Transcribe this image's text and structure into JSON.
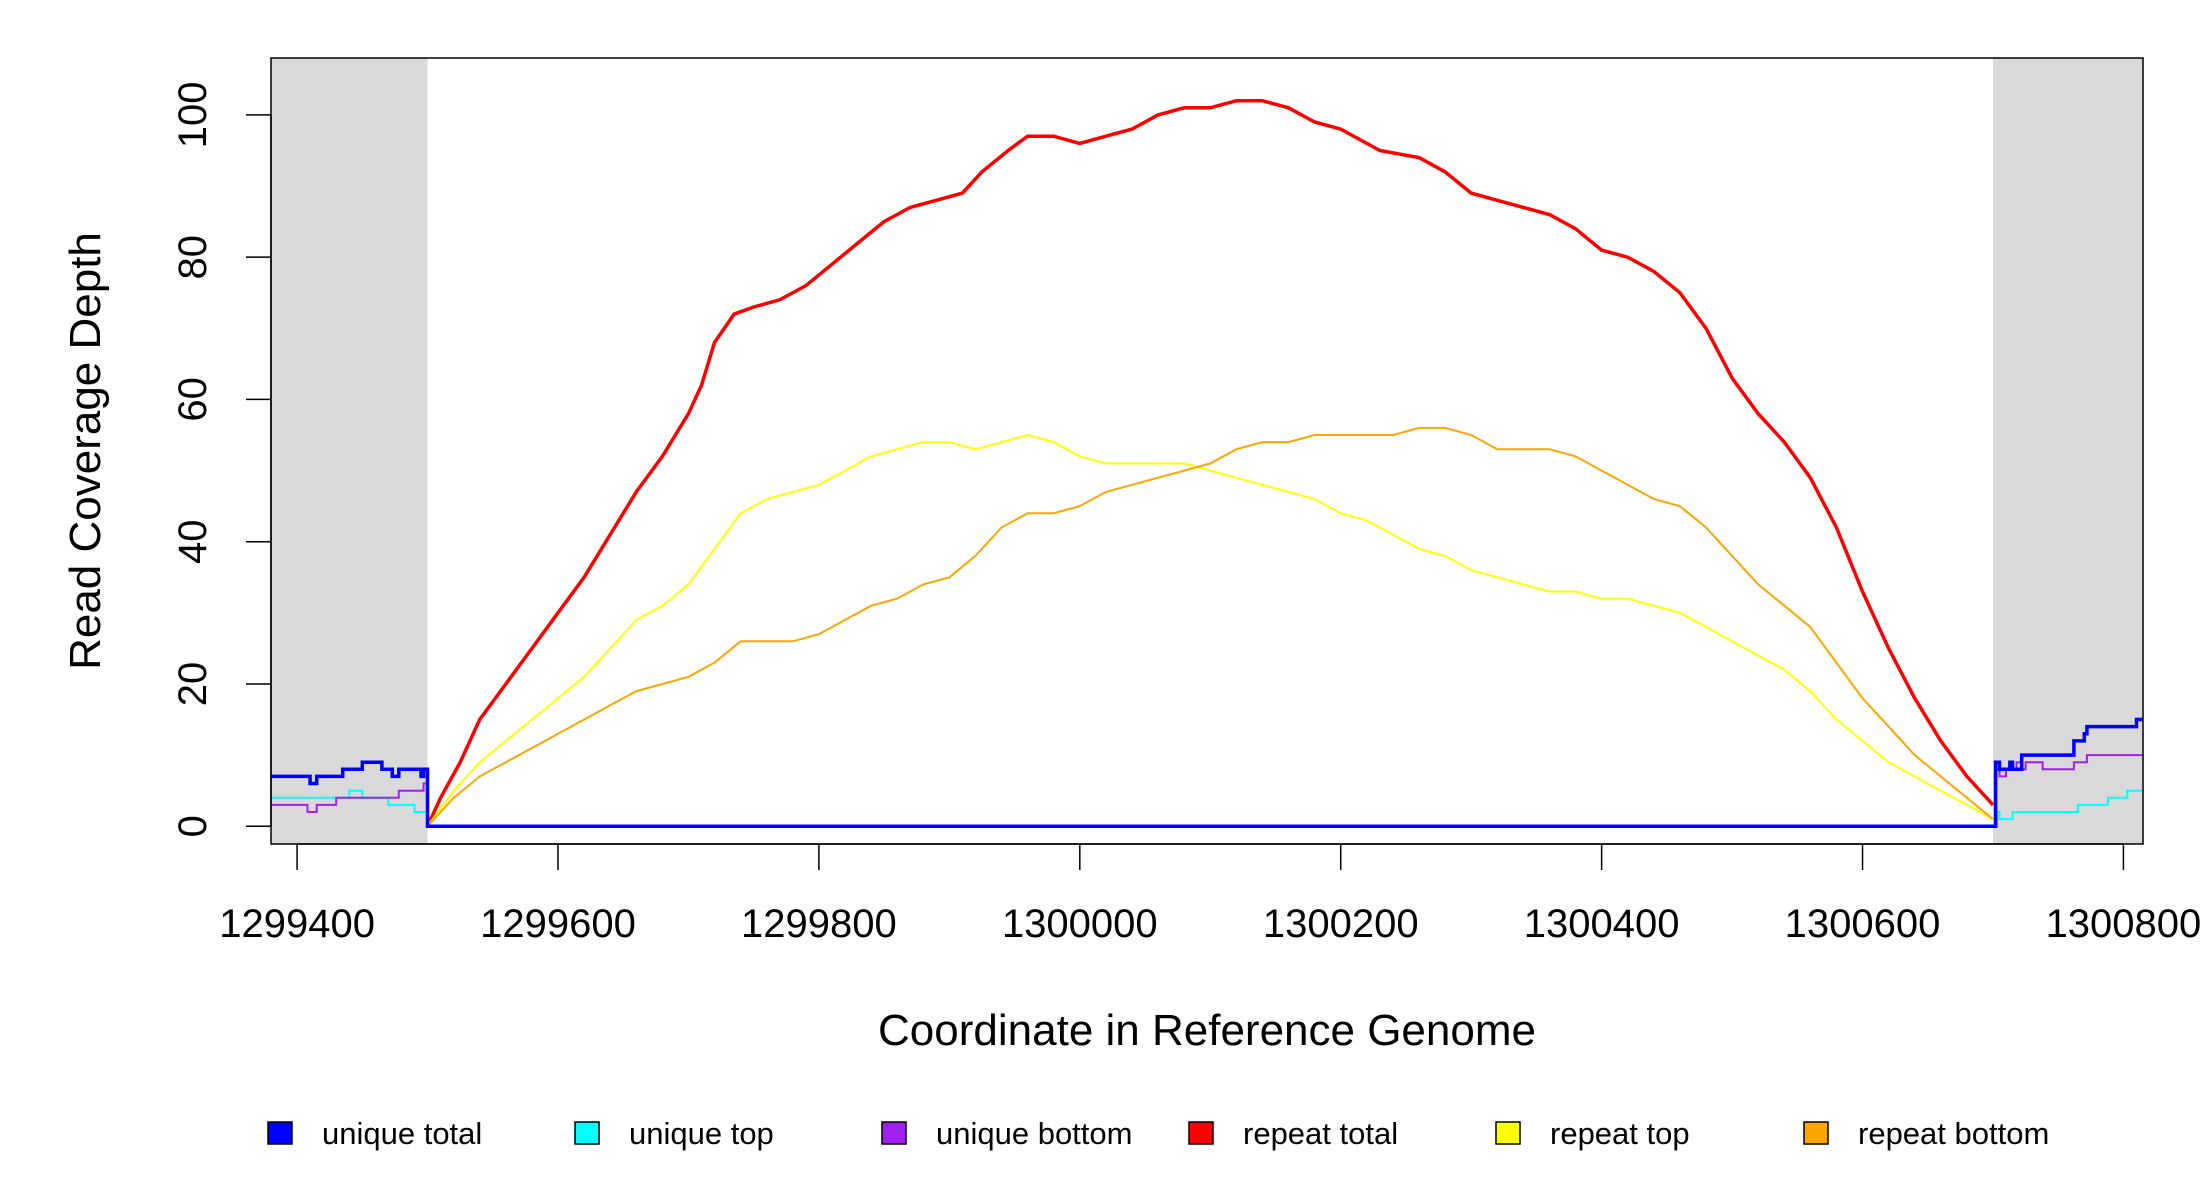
{
  "chart_data": {
    "type": "line",
    "title": "",
    "xlabel": "Coordinate in Reference Genome",
    "ylabel": "Read Coverage Depth",
    "xlim": [
      1299380,
      1300815
    ],
    "ylim": [
      -2.5,
      108
    ],
    "x_ticks": [
      1299400,
      1299600,
      1299800,
      1300000,
      1300200,
      1300400,
      1300600,
      1300800
    ],
    "x_tick_labels": [
      "1299400",
      "1299600",
      "1299800",
      "1300000",
      "1300200",
      "1300400",
      "1300600",
      "1300800"
    ],
    "y_ticks": [
      0,
      20,
      40,
      60,
      80,
      100
    ],
    "y_tick_labels": [
      "0",
      "20",
      "40",
      "60",
      "80",
      "100"
    ],
    "shaded_regions": [
      {
        "from": 1299380,
        "to": 1299500,
        "color": "#d9d9d9"
      },
      {
        "from": 1300700,
        "to": 1300815,
        "color": "#d9d9d9"
      }
    ],
    "grid": false,
    "legend_position": "bottom",
    "series": [
      {
        "name": "unique total",
        "color": "#0000ff",
        "width": 3.5,
        "step": true,
        "x": [
          1299380,
          1299410,
          1299415,
          1299425,
          1299435,
          1299440,
          1299450,
          1299465,
          1299470,
          1299473,
          1299478,
          1299490,
          1299495,
          1299497,
          1299499,
          1299500,
          1299700,
          1300700,
          1300702,
          1300705,
          1300713,
          1300715,
          1300722,
          1300738,
          1300760,
          1300762,
          1300767,
          1300770,
          1300772,
          1300810,
          1300815
        ],
        "y": [
          7,
          6,
          7,
          7,
          8,
          8,
          9,
          8,
          8,
          7,
          8,
          8,
          7,
          8,
          8,
          0,
          0,
          0,
          9,
          8,
          9,
          8,
          10,
          10,
          10,
          12,
          12,
          13,
          14,
          15,
          15
        ]
      },
      {
        "name": "unique top",
        "color": "#00ffff",
        "width": 2,
        "step": true,
        "x": [
          1299380,
          1299440,
          1299450,
          1299470,
          1299490,
          1299499,
          1299500,
          1299700,
          1300700,
          1300703,
          1300705,
          1300715,
          1300722,
          1300760,
          1300765,
          1300785,
          1300788,
          1300800,
          1300803,
          1300808,
          1300815
        ],
        "y": [
          4,
          5,
          4,
          3,
          2,
          2,
          0,
          0,
          0,
          2,
          1,
          2,
          2,
          2,
          3,
          3,
          4,
          4,
          5,
          5,
          5
        ]
      },
      {
        "name": "unique bottom",
        "color": "#a020f0",
        "width": 2,
        "step": true,
        "x": [
          1299380,
          1299408,
          1299415,
          1299420,
          1299430,
          1299435,
          1299473,
          1299478,
          1299493,
          1299497,
          1299500,
          1299700,
          1300700,
          1300702,
          1300705,
          1300710,
          1300718,
          1300722,
          1300725,
          1300730,
          1300738,
          1300760,
          1300762,
          1300765,
          1300770,
          1300772,
          1300810,
          1300815
        ],
        "y": [
          3,
          2,
          3,
          3,
          4,
          4,
          4,
          5,
          5,
          6,
          0,
          0,
          0,
          8,
          7,
          8,
          9,
          8,
          9,
          9,
          8,
          8,
          9,
          9,
          9,
          10,
          10,
          10
        ]
      },
      {
        "name": "repeat total",
        "color": "#ff0000",
        "width": 3.5,
        "step": false,
        "x": [
          1299500,
          1299510,
          1299525,
          1299540,
          1299560,
          1299580,
          1299600,
          1299620,
          1299640,
          1299660,
          1299680,
          1299700,
          1299710,
          1299720,
          1299735,
          1299750,
          1299770,
          1299790,
          1299810,
          1299830,
          1299850,
          1299870,
          1299890,
          1299910,
          1299925,
          1299945,
          1299960,
          1299980,
          1300000,
          1300020,
          1300040,
          1300060,
          1300080,
          1300100,
          1300120,
          1300140,
          1300160,
          1300180,
          1300200,
          1300230,
          1300260,
          1300280,
          1300300,
          1300320,
          1300340,
          1300360,
          1300380,
          1300400,
          1300420,
          1300440,
          1300460,
          1300480,
          1300500,
          1300520,
          1300540,
          1300560,
          1300580,
          1300600,
          1300620,
          1300640,
          1300660,
          1300680,
          1300700
        ],
        "y": [
          0,
          4,
          9,
          15,
          20,
          25,
          30,
          35,
          41,
          47,
          52,
          58,
          62,
          68,
          72,
          73,
          74,
          76,
          79,
          82,
          85,
          87,
          88,
          89,
          92,
          95,
          97,
          97,
          96,
          97,
          98,
          100,
          101,
          101,
          102,
          102,
          101,
          99,
          98,
          95,
          94,
          92,
          89,
          88,
          87,
          86,
          84,
          81,
          80,
          78,
          75,
          70,
          63,
          58,
          54,
          49,
          42,
          33,
          25,
          18,
          12,
          7,
          3
        ]
      },
      {
        "name": "repeat top",
        "color": "#ffff00",
        "width": 2,
        "step": false,
        "x": [
          1299500,
          1299520,
          1299540,
          1299560,
          1299580,
          1299600,
          1299620,
          1299640,
          1299660,
          1299680,
          1299700,
          1299720,
          1299740,
          1299760,
          1299780,
          1299800,
          1299820,
          1299840,
          1299860,
          1299880,
          1299900,
          1299920,
          1299940,
          1299960,
          1299980,
          1300000,
          1300020,
          1300040,
          1300060,
          1300080,
          1300100,
          1300120,
          1300140,
          1300160,
          1300180,
          1300200,
          1300220,
          1300240,
          1300260,
          1300280,
          1300300,
          1300320,
          1300340,
          1300360,
          1300380,
          1300400,
          1300420,
          1300440,
          1300460,
          1300480,
          1300500,
          1300520,
          1300540,
          1300560,
          1300580,
          1300600,
          1300620,
          1300640,
          1300660,
          1300680,
          1300700
        ],
        "y": [
          0,
          5,
          9,
          12,
          15,
          18,
          21,
          25,
          29,
          31,
          34,
          39,
          44,
          46,
          47,
          48,
          50,
          52,
          53,
          54,
          54,
          53,
          54,
          55,
          54,
          52,
          51,
          51,
          51,
          51,
          50,
          49,
          48,
          47,
          46,
          44,
          43,
          41,
          39,
          38,
          36,
          35,
          34,
          33,
          33,
          32,
          32,
          31,
          30,
          28,
          26,
          24,
          22,
          19,
          15,
          12,
          9,
          7,
          5,
          3,
          1
        ]
      },
      {
        "name": "repeat bottom",
        "color": "#ffa500",
        "width": 2,
        "step": false,
        "x": [
          1299500,
          1299520,
          1299540,
          1299560,
          1299580,
          1299600,
          1299620,
          1299640,
          1299660,
          1299680,
          1299700,
          1299720,
          1299740,
          1299760,
          1299780,
          1299800,
          1299820,
          1299840,
          1299860,
          1299880,
          1299900,
          1299920,
          1299940,
          1299960,
          1299980,
          1300000,
          1300020,
          1300040,
          1300060,
          1300080,
          1300100,
          1300120,
          1300140,
          1300160,
          1300180,
          1300200,
          1300220,
          1300240,
          1300260,
          1300280,
          1300300,
          1300320,
          1300340,
          1300360,
          1300380,
          1300400,
          1300420,
          1300440,
          1300460,
          1300480,
          1300500,
          1300520,
          1300540,
          1300560,
          1300580,
          1300600,
          1300620,
          1300640,
          1300660,
          1300680,
          1300700
        ],
        "y": [
          0,
          4,
          7,
          9,
          11,
          13,
          15,
          17,
          19,
          20,
          21,
          23,
          26,
          26,
          26,
          27,
          29,
          31,
          32,
          34,
          35,
          38,
          42,
          44,
          44,
          45,
          47,
          48,
          49,
          50,
          51,
          53,
          54,
          54,
          55,
          55,
          55,
          55,
          56,
          56,
          55,
          53,
          53,
          53,
          52,
          50,
          48,
          46,
          45,
          42,
          38,
          34,
          31,
          28,
          23,
          18,
          14,
          10,
          7,
          4,
          1
        ]
      }
    ]
  }
}
